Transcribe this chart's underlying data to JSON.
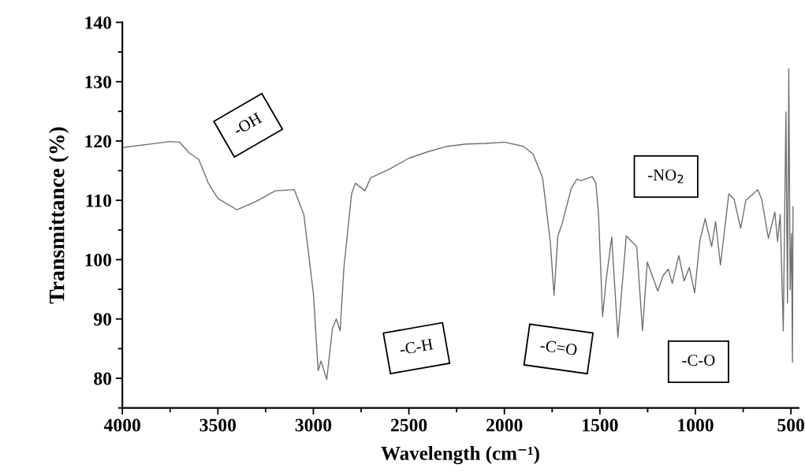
{
  "chart_data": {
    "type": "line",
    "xlabel": "Wavelength (cm⁻¹)",
    "ylabel": "Transmittance (%)",
    "xlim": [
      4000,
      460
    ],
    "xticks": [
      4000,
      3500,
      3000,
      2500,
      2000,
      1500,
      1000,
      500
    ],
    "ylim": [
      75,
      140
    ],
    "yticks": [
      80,
      90,
      100,
      110,
      120,
      130,
      140
    ],
    "grid": false,
    "marker": "none",
    "line_style": "solid",
    "series": [
      {
        "color": "#707070",
        "x": [
          4000,
          3750,
          3700,
          3650,
          3600,
          3550,
          3500,
          3400,
          3300,
          3200,
          3100,
          3050,
          3000,
          2975,
          2960,
          2930,
          2900,
          2880,
          2860,
          2840,
          2800,
          2780,
          2730,
          2700,
          2600,
          2500,
          2400,
          2300,
          2200,
          2100,
          2000,
          1900,
          1850,
          1800,
          1760,
          1740,
          1720,
          1700,
          1650,
          1620,
          1600,
          1541,
          1521,
          1507,
          1486,
          1466,
          1438,
          1406,
          1362,
          1307,
          1277,
          1252,
          1197,
          1169,
          1142,
          1121,
          1087,
          1059,
          1032,
          1004,
          977,
          949,
          915,
          894,
          869,
          825,
          798,
          763,
          736,
          674,
          653,
          618,
          584,
          570,
          556,
          540,
          526,
          518,
          511,
          504,
          497,
          492,
          489
        ],
        "values": [
          118.9,
          119.9,
          119.8,
          118.0,
          116.9,
          112.9,
          110.3,
          108.4,
          109.8,
          111.6,
          111.8,
          107.6,
          94.3,
          81.3,
          82.9,
          79.8,
          88.4,
          90.0,
          88.0,
          98.7,
          111.1,
          112.9,
          111.6,
          113.8,
          115.3,
          117.1,
          118.2,
          119.1,
          119.5,
          119.6,
          119.8,
          119.1,
          117.8,
          113.8,
          103.1,
          94.0,
          104.0,
          105.8,
          112.0,
          113.6,
          113.3,
          114.0,
          112.9,
          107.6,
          90.4,
          96.9,
          103.8,
          86.9,
          104.0,
          102.2,
          88.0,
          99.6,
          94.7,
          97.3,
          98.4,
          96.0,
          100.7,
          96.4,
          98.7,
          94.4,
          103.1,
          106.9,
          102.2,
          106.4,
          99.1,
          111.1,
          110.2,
          105.3,
          110.0,
          111.8,
          110.2,
          103.6,
          108.0,
          103.1,
          107.6,
          88.0,
          124.9,
          92.7,
          132.2,
          94.9,
          104.4,
          82.7,
          108.9
        ]
      }
    ],
    "annotations": [
      "-OH",
      "-C-H",
      "-C=O",
      "-NO$_{2}$",
      "-C-O"
    ]
  }
}
